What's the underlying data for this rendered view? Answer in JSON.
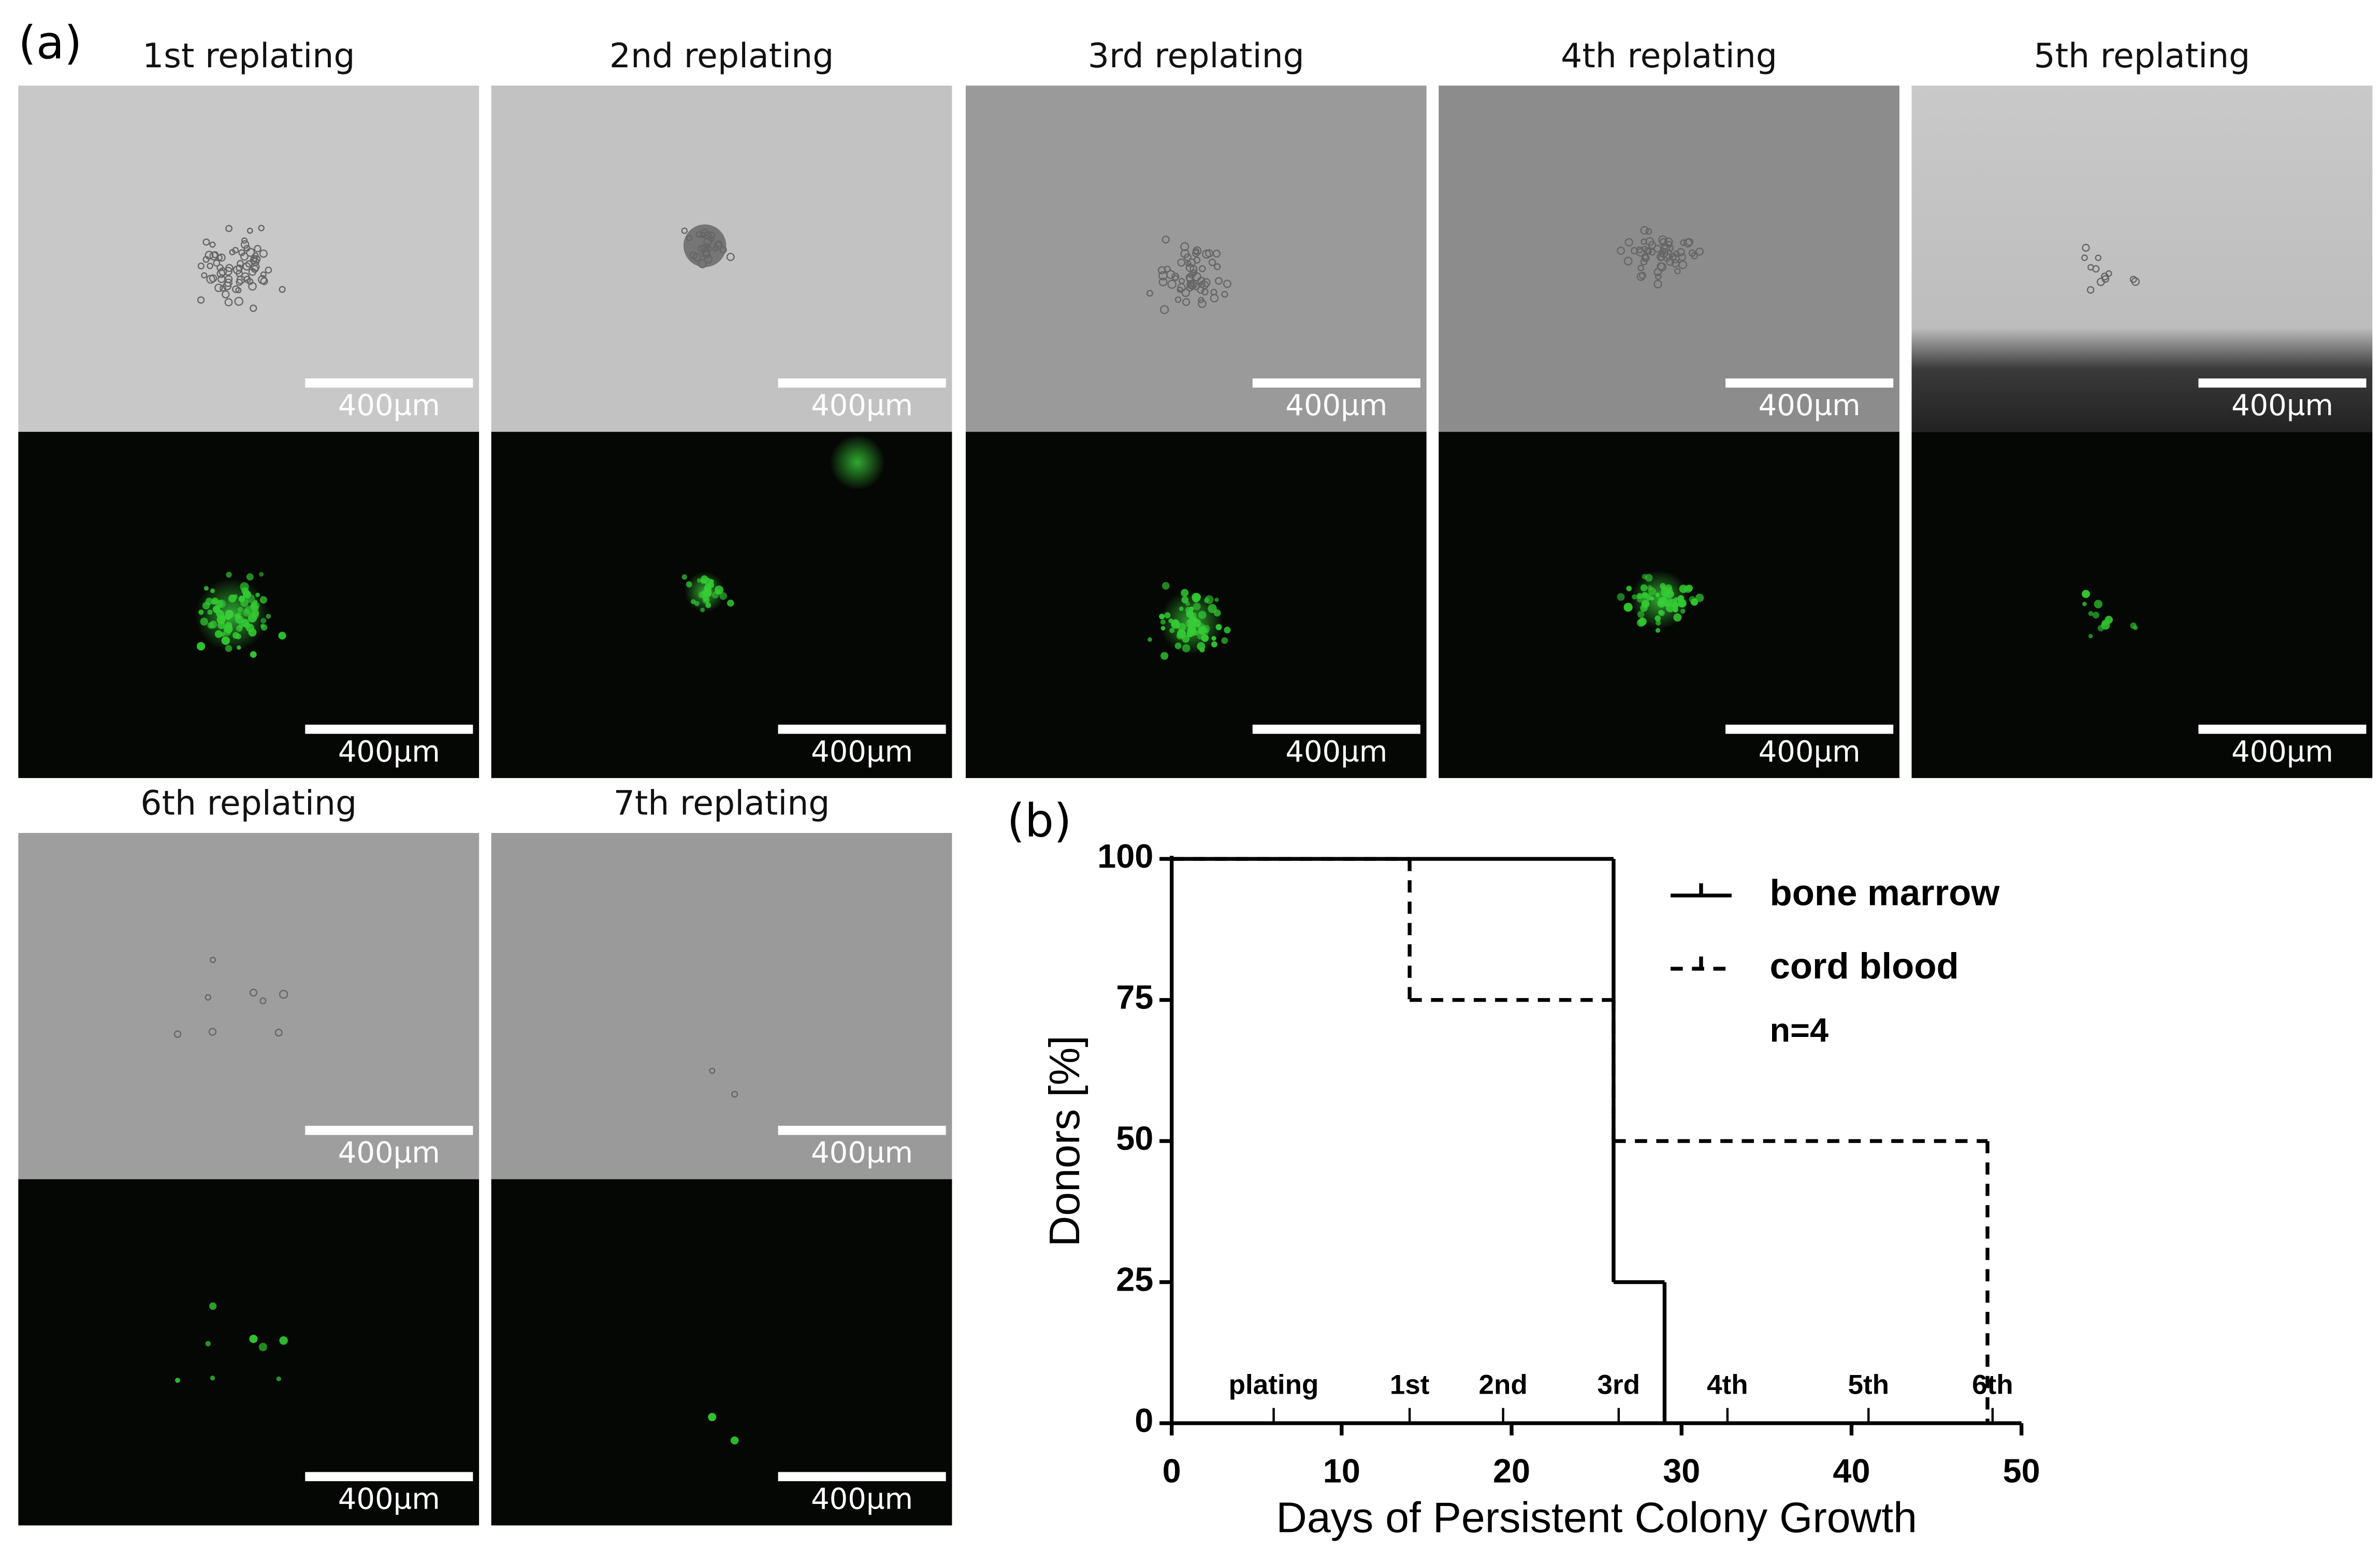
{
  "panel_a": {
    "label": "(a)",
    "panels": [
      {
        "title": "1st replating",
        "scale_bars": [
          "400µm",
          "400µm"
        ]
      },
      {
        "title": "2nd replating",
        "scale_bars": [
          "400µm",
          "400µm"
        ]
      },
      {
        "title": "3rd replating",
        "scale_bars": [
          "400µm",
          "400µm"
        ]
      },
      {
        "title": "4th replating",
        "scale_bars": [
          "400µm",
          "400µm"
        ]
      },
      {
        "title": "5th replating",
        "scale_bars": [
          "400µm",
          "400µm"
        ]
      },
      {
        "title": "6th replating",
        "scale_bars": [
          "400µm",
          "400µm"
        ]
      },
      {
        "title": "7th replating",
        "scale_bars": [
          "400µm",
          "400µm"
        ]
      }
    ]
  },
  "chart_data": {
    "type": "step",
    "panel_label": "(b)",
    "x_label": "Days of Persistent Colony Growth",
    "y_label": "Donors [%]",
    "xlim": [
      0,
      50
    ],
    "xticks": [
      0,
      10,
      20,
      30,
      40,
      50
    ],
    "ylim": [
      0,
      100
    ],
    "yticks": [
      0,
      25,
      50,
      75,
      100
    ],
    "series": [
      {
        "name": "bone marrow",
        "color": "#000000",
        "style": "solid",
        "x": [
          0,
          26,
          29
        ],
        "values": [
          100,
          25,
          0
        ]
      },
      {
        "name": "cord blood",
        "color": "#000000",
        "style": "dashed",
        "x": [
          0,
          14,
          26,
          48
        ],
        "values": [
          100,
          75,
          50,
          0
        ]
      }
    ],
    "annotation": "n=4",
    "replating_markers": [
      {
        "x": 6,
        "label": "plating"
      },
      {
        "x": 14,
        "label": "1st"
      },
      {
        "x": 19.5,
        "label": "2nd"
      },
      {
        "x": 26.3,
        "label": "3rd"
      },
      {
        "x": 32.7,
        "label": "4th"
      },
      {
        "x": 41,
        "label": "5th"
      },
      {
        "x": 48.3,
        "label": "6th"
      }
    ]
  }
}
